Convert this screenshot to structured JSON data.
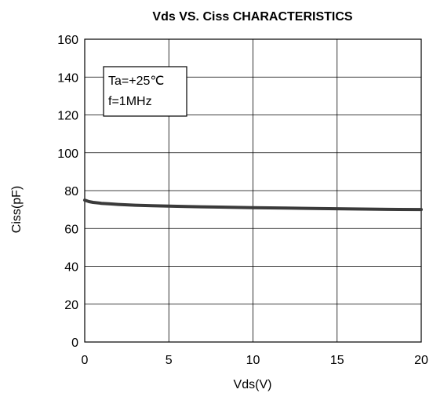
{
  "chart_data": {
    "type": "line",
    "title": "Vds  VS. Ciss CHARACTERISTICS",
    "xlabel": "Vds(V)",
    "ylabel": "Ciss(pF)",
    "xlim": [
      0,
      20
    ],
    "ylim": [
      0,
      160
    ],
    "x_ticks": [
      0,
      5,
      10,
      15,
      20
    ],
    "y_ticks": [
      0,
      20,
      40,
      60,
      80,
      100,
      120,
      140,
      160
    ],
    "grid": true,
    "annotation": [
      "Ta=+25℃",
      "f=1MHz"
    ],
    "series": [
      {
        "x": [
          0,
          0.25,
          0.5,
          1,
          1.5,
          2,
          3,
          4,
          5,
          6,
          8,
          10,
          12,
          14,
          16,
          18,
          20
        ],
        "y": [
          75,
          74.2,
          73.8,
          73.3,
          73.0,
          72.7,
          72.3,
          72.0,
          71.8,
          71.6,
          71.3,
          71.0,
          70.8,
          70.5,
          70.3,
          70.1,
          70.0
        ]
      }
    ],
    "colors": {
      "line": "#3a3a3a",
      "grid": "#000000"
    }
  }
}
